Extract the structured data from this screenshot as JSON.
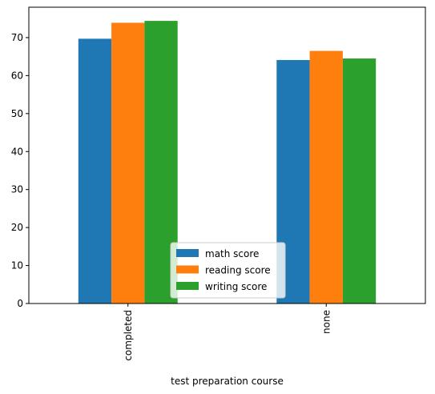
{
  "chart_data": {
    "type": "bar",
    "xlabel": "test preparation course",
    "ylabel": "",
    "categories": [
      "completed",
      "none"
    ],
    "series": [
      {
        "name": "math score",
        "color": "#1f77b4",
        "values": [
          69.7,
          64.1
        ]
      },
      {
        "name": "reading score",
        "color": "#ff7f0e",
        "values": [
          73.9,
          66.5
        ]
      },
      {
        "name": "writing score",
        "color": "#2ca02c",
        "values": [
          74.4,
          64.5
        ]
      }
    ],
    "ylim": [
      0,
      78
    ],
    "yticks": [
      0,
      10,
      20,
      30,
      40,
      50,
      60,
      70
    ],
    "grid": false,
    "legend": "bottom-center"
  }
}
